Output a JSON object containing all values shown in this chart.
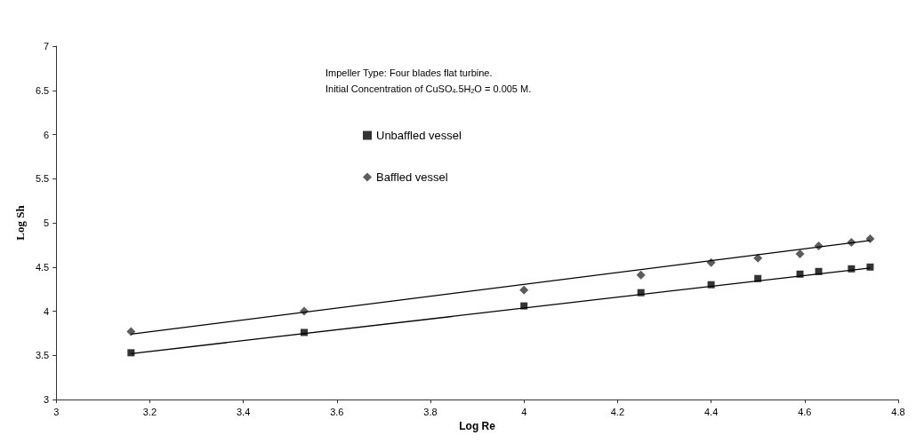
{
  "chart_data": {
    "type": "scatter",
    "xlabel": "Log Re",
    "ylabel": "Log Sh",
    "xlim": [
      3,
      4.8
    ],
    "xticks": [
      3,
      3.2,
      3.4,
      3.6,
      3.8,
      4,
      4.2,
      4.4,
      4.6,
      4.8
    ],
    "ylim": [
      3,
      7
    ],
    "yticks": [
      3,
      3.5,
      4,
      4.5,
      5,
      5.5,
      6,
      6.5,
      7
    ],
    "grid": false,
    "legend": "top",
    "annotations": [
      "Impeller Type: Four blades flat turbine.",
      "Initial Concentration of CuSO$_{4}$.5H$_{2}$O = 0.005 M."
    ],
    "series": [
      {
        "name": "Unbaffled vessel",
        "color": "#000000",
        "marker": "square",
        "x": [
          3.16,
          3.53,
          4.0,
          4.25,
          4.4,
          4.5,
          4.59,
          4.63,
          4.7,
          4.74
        ],
        "values": [
          3.53,
          3.76,
          4.06,
          4.21,
          4.3,
          4.37,
          4.42,
          4.45,
          4.48,
          4.5
        ]
      },
      {
        "name": "Baffled vessel",
        "color": "#333333",
        "marker": "diamond",
        "x": [
          3.16,
          3.53,
          4.0,
          4.25,
          4.4,
          4.5,
          4.59,
          4.63,
          4.7,
          4.74
        ],
        "values": [
          3.77,
          4.0,
          4.24,
          4.41,
          4.55,
          4.6,
          4.65,
          4.74,
          4.78,
          4.82
        ]
      },
      {
        "type": "line",
        "color": "#000000",
        "marker": "none",
        "x": [
          3.16,
          4.74
        ],
        "values": [
          3.52,
          4.49
        ]
      },
      {
        "type": "line",
        "color": "#000000",
        "marker": "none",
        "x": [
          3.16,
          4.74
        ],
        "values": [
          3.74,
          4.8
        ]
      }
    ]
  }
}
